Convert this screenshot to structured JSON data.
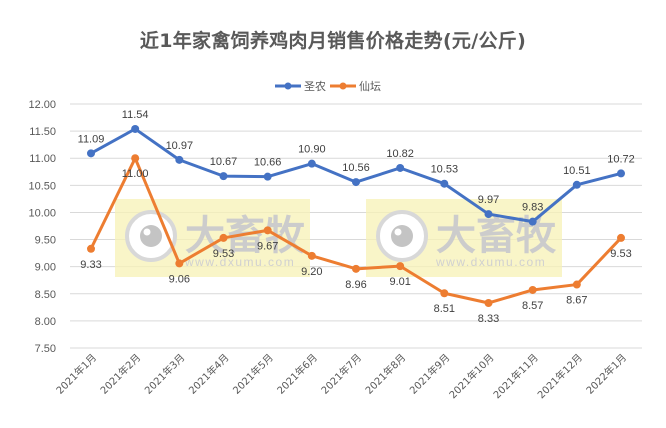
{
  "chart_data": {
    "type": "line",
    "title": "近1年家禽饲养鸡肉月销售价格走势(元/公斤)",
    "xlabel": "",
    "ylabel": "",
    "categories": [
      "2021年1月",
      "2021年2月",
      "2021年3月",
      "2021年4月",
      "2021年5月",
      "2021年6月",
      "2021年7月",
      "2021年8月",
      "2021年9月",
      "2021年10月",
      "2021年11月",
      "2021年12月",
      "2022年1月"
    ],
    "series": [
      {
        "name": "圣农",
        "color": "#4472C4",
        "values": [
          11.09,
          11.54,
          10.97,
          10.67,
          10.66,
          10.9,
          10.56,
          10.82,
          10.53,
          9.97,
          9.83,
          10.51,
          10.72
        ],
        "label_pos": "above"
      },
      {
        "name": "仙坛",
        "color": "#ED7D31",
        "values": [
          9.33,
          11.0,
          9.06,
          9.53,
          9.67,
          9.2,
          8.96,
          9.01,
          8.51,
          8.33,
          8.57,
          8.67,
          9.53
        ],
        "label_pos": "below"
      }
    ],
    "ylim": [
      7.5,
      12.0
    ],
    "yticks": [
      "12.00",
      "11.50",
      "11.00",
      "10.50",
      "10.00",
      "9.50",
      "9.00",
      "8.50",
      "8.00",
      "7.50"
    ],
    "grid": true,
    "legend_position": "top"
  },
  "watermark": {
    "brand": "大畜牧",
    "url": "www.dxumu.com"
  }
}
